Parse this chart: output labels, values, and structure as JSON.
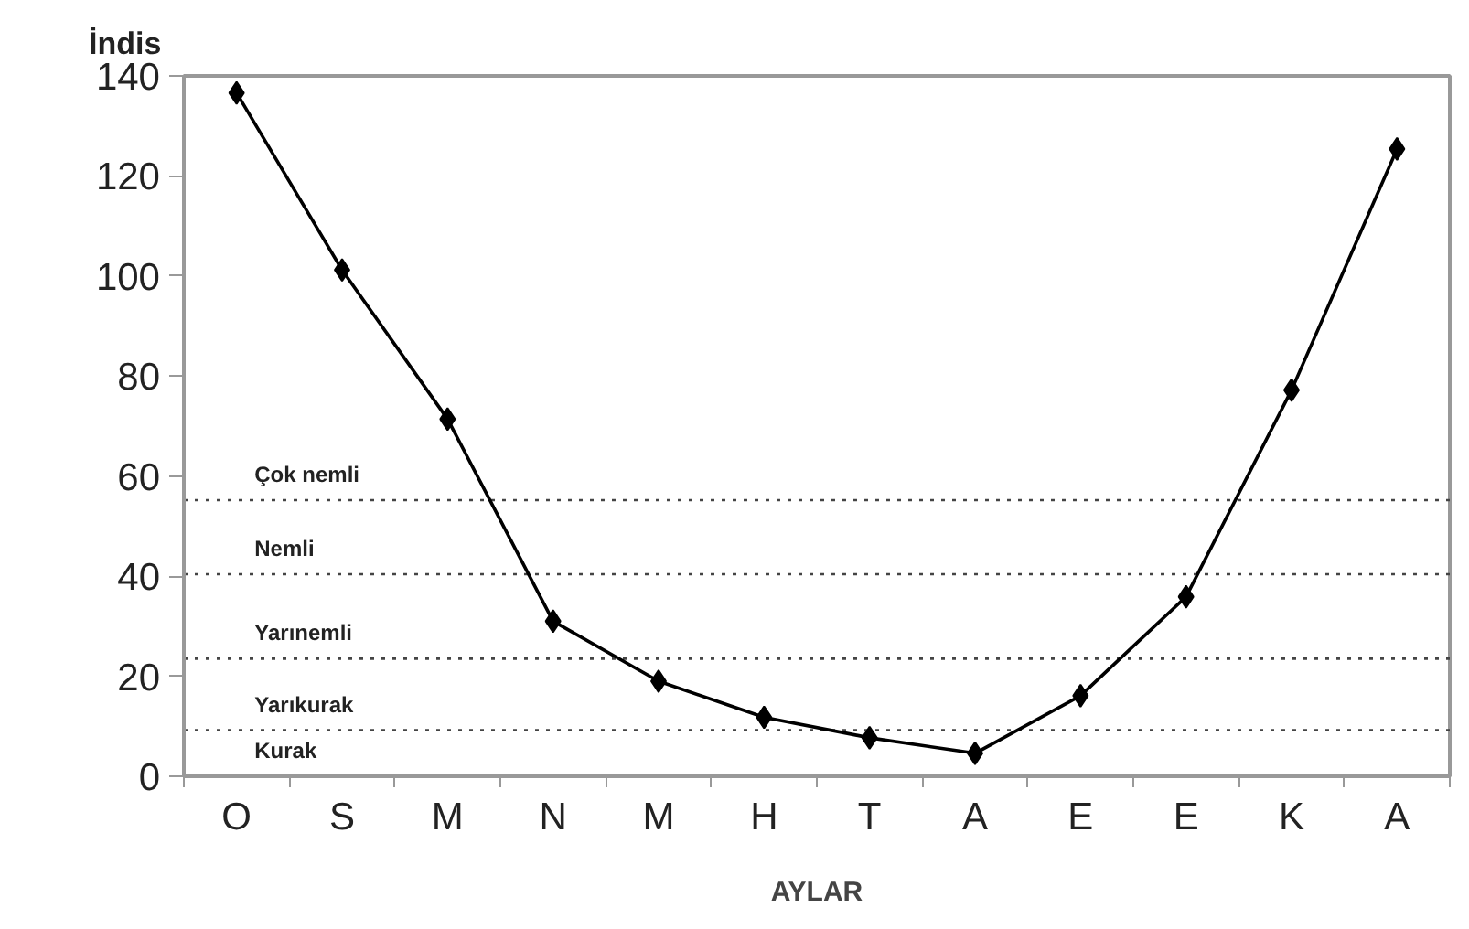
{
  "chart_data": {
    "type": "line",
    "xlabel": "AYLAR",
    "ylabel": "İndis",
    "categories": [
      "O",
      "S",
      "M",
      "N",
      "M",
      "H",
      "T",
      "A",
      "E",
      "E",
      "K",
      "A"
    ],
    "series": [
      {
        "color": "#000000",
        "values": [
          136.6,
          101.2,
          71.4,
          31.0,
          19.0,
          11.8,
          7.7,
          4.6,
          16.1,
          35.9,
          77.2,
          125.4
        ]
      }
    ],
    "ylim": [
      0,
      140
    ],
    "yticks": [
      0,
      20,
      40,
      60,
      80,
      100,
      120,
      140
    ],
    "ref_lines": [
      {
        "axis": "y",
        "value": 55.2,
        "line_style": "dotted",
        "color": "#444444"
      },
      {
        "axis": "y",
        "value": 40.4,
        "line_style": "dotted",
        "color": "#444444"
      },
      {
        "axis": "y",
        "value": 23.5,
        "line_style": "dotted",
        "color": "#444444"
      },
      {
        "axis": "y",
        "value": 9.2,
        "line_style": "dotted",
        "color": "#444444"
      }
    ],
    "annotations": [
      "Çok nemli",
      "Nemli",
      "Yarınemli",
      "Yarıkurak",
      "Kurak"
    ],
    "marker": "diamond",
    "line_style": "solid",
    "grid": false
  }
}
